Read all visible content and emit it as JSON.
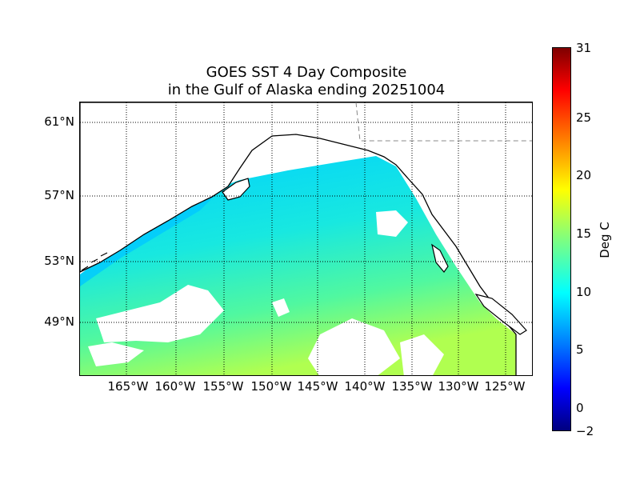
{
  "title": {
    "line1": "GOES SST 4 Day Composite",
    "line2": "in the Gulf of Alaska ending 20251004"
  },
  "map": {
    "region": "Gulf of Alaska",
    "lat_labels": [
      "61°N",
      "57°N",
      "53°N",
      "49°N"
    ],
    "lon_labels": [
      "165°W",
      "160°W",
      "155°W",
      "150°W",
      "145°W",
      "140°W",
      "135°W",
      "130°W",
      "125°W"
    ],
    "colors": {
      "cold": "#00d8ff",
      "mid": "#20f0d0",
      "warm": "#8aff6a",
      "land": "#ffffff",
      "coast": "#000000"
    }
  },
  "colorbar": {
    "label": "Deg C",
    "ticks": [
      "31",
      "25",
      "20",
      "15",
      "10",
      "5",
      "0",
      "−2"
    ],
    "min": -2,
    "max": 31,
    "colormap": "jet"
  }
}
